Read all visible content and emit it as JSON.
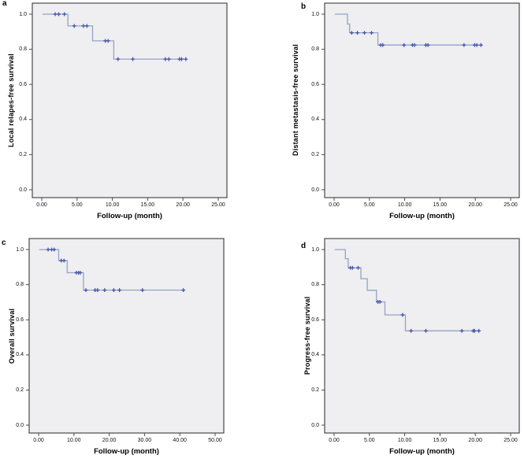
{
  "figure": {
    "panel_count": 4,
    "background_color": "#ffffff",
    "plot_background_color": "#efeef0",
    "frame_color": "#4a4a4a",
    "curve_color": "#93a3c9",
    "censor_color": "#4053a4"
  },
  "chart_data": [
    {
      "type": "line",
      "subtype": "kaplan_meier_step",
      "panel_letter": "a",
      "ylabel": "Local relapes-free survival",
      "xlabel": "Follow-up (month)",
      "grid": false,
      "legend": null,
      "xticks": [
        0,
        5,
        10,
        15,
        20,
        25
      ],
      "xtick_labels": [
        "0.00",
        "5.00",
        "10.00",
        "15.00",
        "20.00",
        "25.00"
      ],
      "yticks": [
        0.0,
        0.2,
        0.4,
        0.6,
        0.8,
        1.0
      ],
      "ytick_labels": [
        "0.0",
        "0.2",
        "0.4",
        "0.6",
        "0.8",
        "1.0"
      ],
      "xlim": [
        0,
        26.5
      ],
      "ylim": [
        0,
        1.05
      ],
      "curve": {
        "start_x": 0.1,
        "end_x": 20.6,
        "steps": [
          [
            3.7,
            0.933
          ],
          [
            7.2,
            0.848
          ],
          [
            10.2,
            0.744
          ]
        ],
        "censor_marks": [
          [
            1.9,
            1.0
          ],
          [
            2.4,
            1.0
          ],
          [
            3.2,
            1.0
          ],
          [
            4.6,
            0.933
          ],
          [
            5.9,
            0.933
          ],
          [
            6.4,
            0.933
          ],
          [
            9.0,
            0.848
          ],
          [
            9.4,
            0.848
          ],
          [
            10.8,
            0.744
          ],
          [
            12.9,
            0.744
          ],
          [
            17.5,
            0.744
          ],
          [
            18.0,
            0.744
          ],
          [
            19.5,
            0.744
          ],
          [
            19.8,
            0.744
          ],
          [
            20.4,
            0.744
          ]
        ]
      }
    },
    {
      "type": "line",
      "subtype": "kaplan_meier_step",
      "panel_letter": "b",
      "ylabel": "Distant metastasis-free survival",
      "xlabel": "Follow-up (month)",
      "grid": false,
      "legend": null,
      "xticks": [
        0,
        5,
        10,
        15,
        20,
        25
      ],
      "xtick_labels": [
        "0.00",
        "5.00",
        "10.00",
        "15.00",
        "20.00",
        "25.00"
      ],
      "yticks": [
        0.0,
        0.2,
        0.4,
        0.6,
        0.8,
        1.0
      ],
      "ytick_labels": [
        "0.0",
        "0.2",
        "0.4",
        "0.6",
        "0.8",
        "1.0"
      ],
      "xlim": [
        0,
        26.5
      ],
      "ylim": [
        0,
        1.05
      ],
      "curve": {
        "start_x": 0.1,
        "end_x": 20.9,
        "steps": [
          [
            1.9,
            0.944
          ],
          [
            2.2,
            0.894
          ],
          [
            6.2,
            0.824
          ]
        ],
        "censor_marks": [
          [
            2.5,
            0.894
          ],
          [
            3.3,
            0.894
          ],
          [
            4.3,
            0.894
          ],
          [
            5.3,
            0.894
          ],
          [
            6.6,
            0.824
          ],
          [
            6.9,
            0.824
          ],
          [
            9.9,
            0.824
          ],
          [
            11.1,
            0.824
          ],
          [
            11.4,
            0.824
          ],
          [
            13.0,
            0.824
          ],
          [
            13.3,
            0.824
          ],
          [
            18.4,
            0.824
          ],
          [
            19.9,
            0.824
          ],
          [
            20.2,
            0.824
          ],
          [
            20.8,
            0.824
          ]
        ]
      }
    },
    {
      "type": "line",
      "subtype": "kaplan_meier_step",
      "panel_letter": "c",
      "ylabel": "Overall survival",
      "xlabel": "Follow-up (month)",
      "grid": false,
      "legend": null,
      "xticks": [
        0,
        10,
        20,
        30,
        40,
        50
      ],
      "xtick_labels": [
        "0.00",
        "10.00",
        "20.00",
        "30.00",
        "40.00",
        "50.00"
      ],
      "yticks": [
        0.0,
        0.2,
        0.4,
        0.6,
        0.8,
        1.0
      ],
      "ytick_labels": [
        "0.0",
        "0.2",
        "0.4",
        "0.6",
        "0.8",
        "1.0"
      ],
      "xlim": [
        0,
        53
      ],
      "ylim": [
        0,
        1.05
      ],
      "curve": {
        "start_x": 0.2,
        "end_x": 41.2,
        "steps": [
          [
            5.7,
            0.937
          ],
          [
            8.1,
            0.868
          ],
          [
            12.7,
            0.769
          ]
        ],
        "censor_marks": [
          [
            2.7,
            1.0
          ],
          [
            3.7,
            1.0
          ],
          [
            4.4,
            1.0
          ],
          [
            6.4,
            0.937
          ],
          [
            7.2,
            0.937
          ],
          [
            10.7,
            0.868
          ],
          [
            11.3,
            0.868
          ],
          [
            11.8,
            0.868
          ],
          [
            13.4,
            0.769
          ],
          [
            16.0,
            0.769
          ],
          [
            16.7,
            0.769
          ],
          [
            18.7,
            0.769
          ],
          [
            21.3,
            0.769
          ],
          [
            22.9,
            0.769
          ],
          [
            29.4,
            0.769
          ],
          [
            41.0,
            0.769
          ]
        ]
      }
    },
    {
      "type": "line",
      "subtype": "kaplan_meier_step",
      "panel_letter": "d",
      "ylabel": "Progress-free survival",
      "xlabel": "Follow-up (month)",
      "grid": false,
      "legend": null,
      "xticks": [
        0,
        5,
        10,
        15,
        20,
        25
      ],
      "xtick_labels": [
        "0.00",
        "5.00",
        "10.00",
        "15.00",
        "20.00",
        "25.00"
      ],
      "yticks": [
        0.0,
        0.2,
        0.4,
        0.6,
        0.8,
        1.0
      ],
      "ytick_labels": [
        "0.0",
        "0.2",
        "0.4",
        "0.6",
        "0.8",
        "1.0"
      ],
      "xlim": [
        0,
        26.5
      ],
      "ylim": [
        0,
        1.05
      ],
      "curve": {
        "start_x": 0.1,
        "end_x": 20.7,
        "steps": [
          [
            1.6,
            0.948
          ],
          [
            2.0,
            0.896
          ],
          [
            3.8,
            0.834
          ],
          [
            4.7,
            0.768
          ],
          [
            6.0,
            0.702
          ],
          [
            7.2,
            0.628
          ],
          [
            10.1,
            0.537
          ]
        ],
        "censor_marks": [
          [
            2.3,
            0.896
          ],
          [
            2.6,
            0.896
          ],
          [
            3.4,
            0.896
          ],
          [
            6.2,
            0.702
          ],
          [
            6.5,
            0.702
          ],
          [
            9.7,
            0.628
          ],
          [
            10.9,
            0.537
          ],
          [
            13.0,
            0.537
          ],
          [
            18.1,
            0.537
          ],
          [
            19.7,
            0.537
          ],
          [
            19.9,
            0.537
          ],
          [
            20.5,
            0.537
          ]
        ]
      }
    }
  ]
}
